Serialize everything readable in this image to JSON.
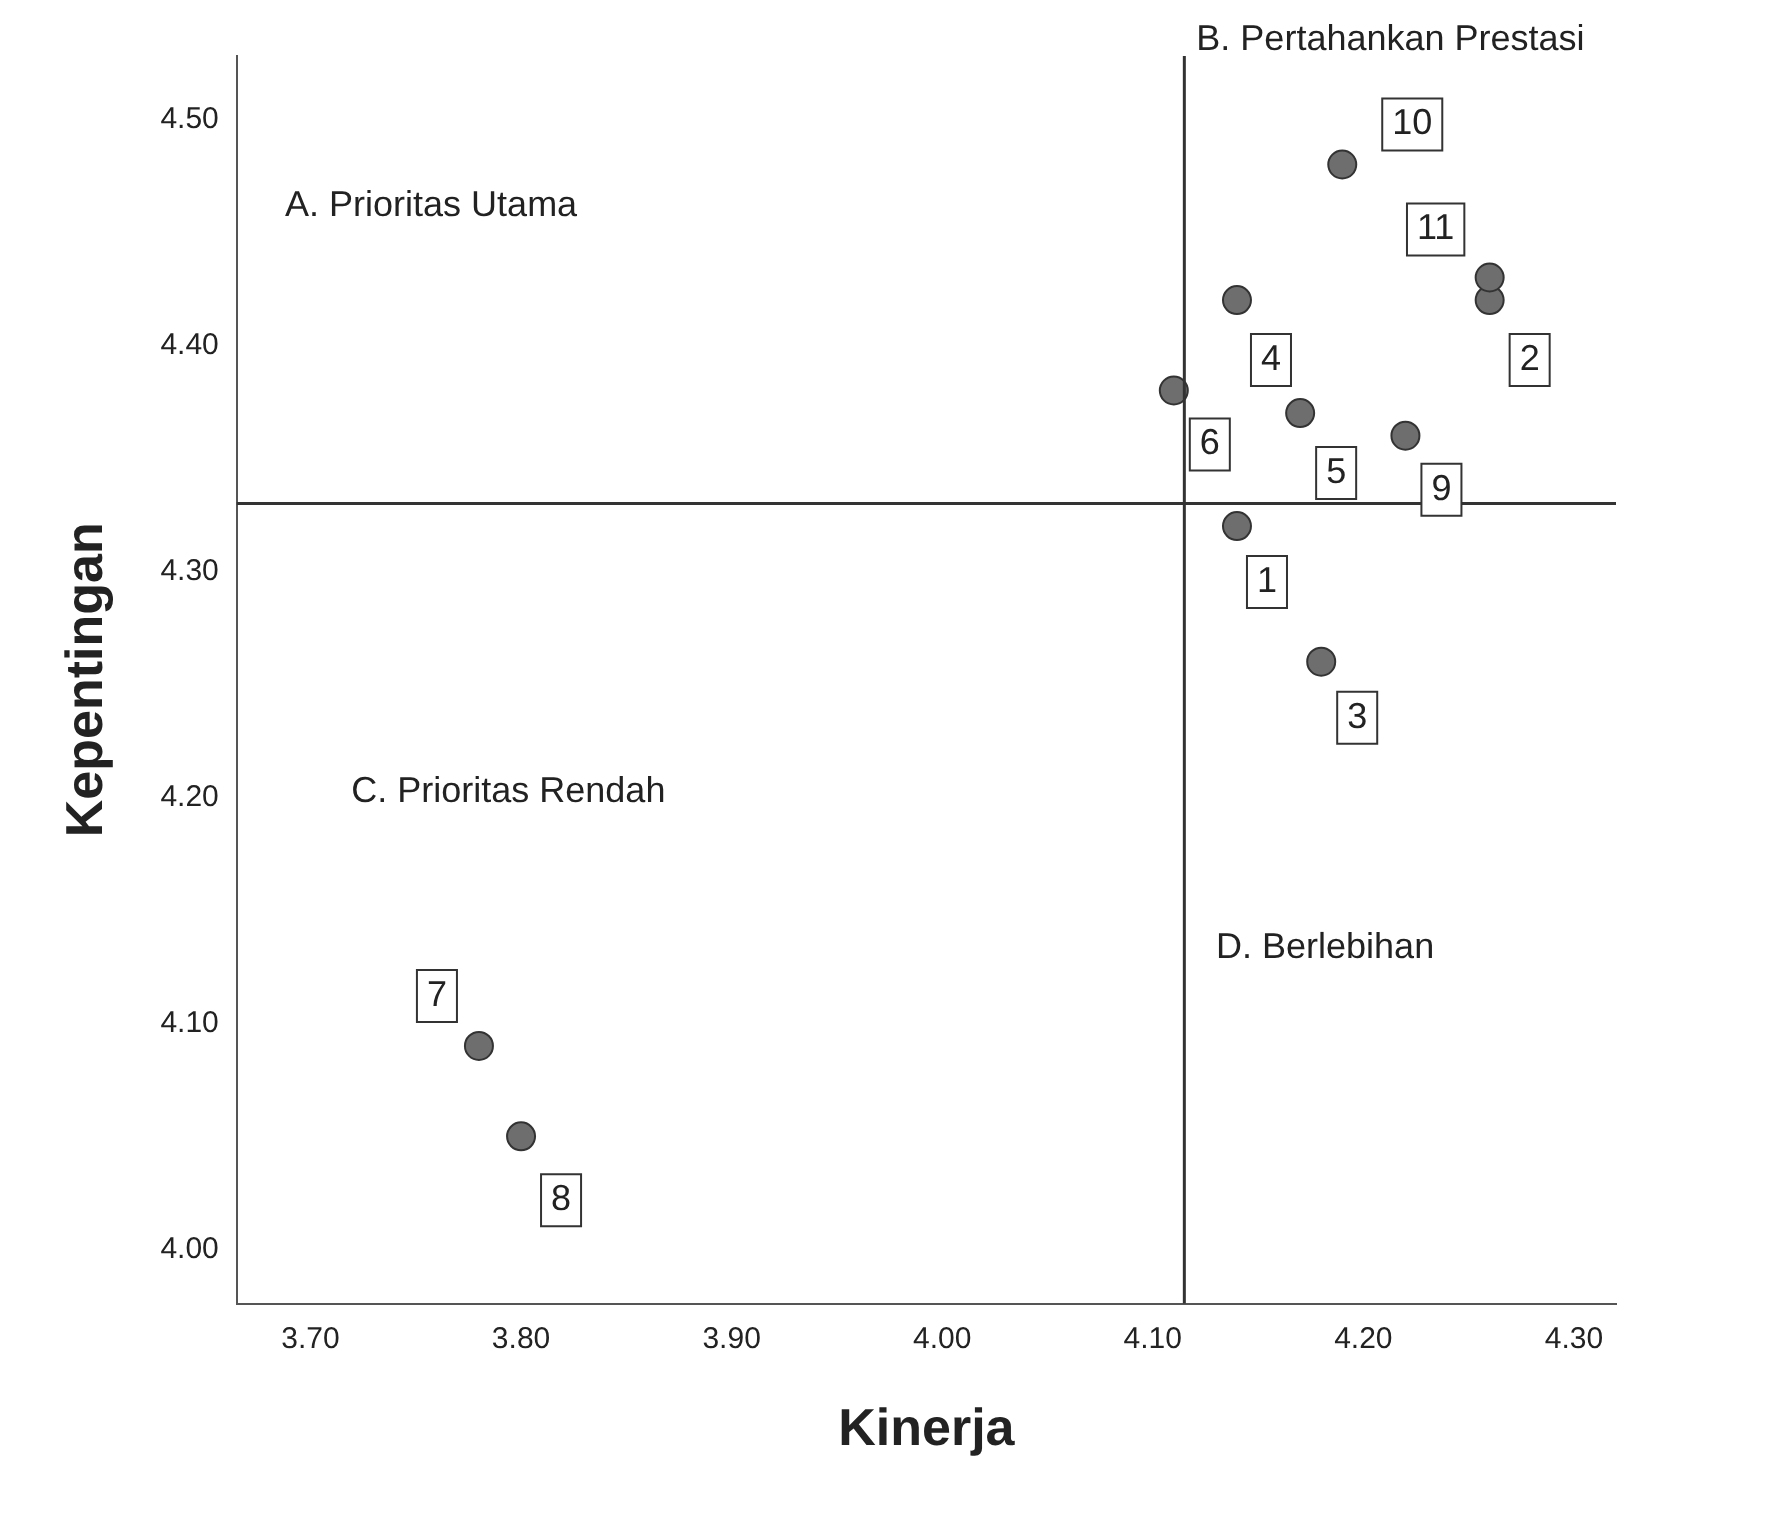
{
  "chart_data": {
    "type": "scatter",
    "xlabel": "Kinerja",
    "ylabel": "Kepentingan",
    "x": [
      4.14,
      4.26,
      4.18,
      4.14,
      4.17,
      4.11,
      3.78,
      3.8,
      4.22,
      4.19,
      4.26
    ],
    "values": [
      4.32,
      4.42,
      4.26,
      4.42,
      4.37,
      4.38,
      4.09,
      4.05,
      4.36,
      4.48,
      4.43
    ],
    "color": "#6e6e6e",
    "marker": "circle",
    "grid": false,
    "legend": false,
    "xlim": [
      3.665,
      4.32
    ],
    "ylim": [
      3.976,
      4.528
    ],
    "xticks": [
      {
        "value": 3.7,
        "label": "3.70"
      },
      {
        "value": 3.8,
        "label": "3.80"
      },
      {
        "value": 3.9,
        "label": "3.90"
      },
      {
        "value": 4.0,
        "label": "4.00"
      },
      {
        "value": 4.1,
        "label": "4.10"
      },
      {
        "value": 4.2,
        "label": "4.20"
      },
      {
        "value": 4.3,
        "label": "4.30"
      }
    ],
    "yticks": [
      {
        "value": 4.0,
        "label": "4.00"
      },
      {
        "value": 4.1,
        "label": "4.10"
      },
      {
        "value": 4.2,
        "label": "4.20"
      },
      {
        "value": 4.3,
        "label": "4.30"
      },
      {
        "value": 4.4,
        "label": "4.40"
      },
      {
        "value": 4.5,
        "label": "4.50"
      }
    ],
    "ref_lines": [
      {
        "axis": "x",
        "value": 4.115,
        "color": "#333333"
      },
      {
        "axis": "y",
        "value": 4.33,
        "color": "#333333"
      }
    ],
    "annotations": [
      {
        "text": "1",
        "x": 4.14,
        "y": 4.32
      },
      {
        "text": "2",
        "x": 4.26,
        "y": 4.42
      },
      {
        "text": "3",
        "x": 4.18,
        "y": 4.26
      },
      {
        "text": "4",
        "x": 4.14,
        "y": 4.42
      },
      {
        "text": "5",
        "x": 4.17,
        "y": 4.37
      },
      {
        "text": "6",
        "x": 4.11,
        "y": 4.38
      },
      {
        "text": "7",
        "x": 3.78,
        "y": 4.09
      },
      {
        "text": "8",
        "x": 3.8,
        "y": 4.05
      },
      {
        "text": "9",
        "x": 4.22,
        "y": 4.36
      },
      {
        "text": "10",
        "x": 4.19,
        "y": 4.48
      },
      {
        "text": "11",
        "x": 4.26,
        "y": 4.43
      },
      "A. Prioritas Utama",
      "B. Pertahankan Prestasi",
      "C. Prioritas Rendah",
      "D. Berlebihan"
    ]
  }
}
